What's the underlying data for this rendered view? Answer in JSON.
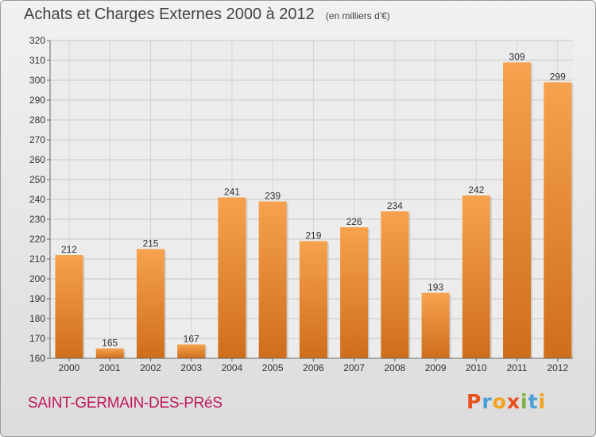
{
  "chart_data": {
    "type": "bar",
    "title": "Achats et Charges Externes 2000 à 2012",
    "subtitle": "(en milliers d'€)",
    "categories": [
      "2000",
      "2001",
      "2002",
      "2003",
      "2004",
      "2005",
      "2006",
      "2007",
      "2008",
      "2009",
      "2010",
      "2011",
      "2012"
    ],
    "values": [
      212,
      165,
      215,
      167,
      241,
      239,
      219,
      226,
      234,
      193,
      242,
      309,
      299
    ],
    "ylim": [
      160,
      320
    ],
    "yticks": [
      160,
      170,
      180,
      190,
      200,
      210,
      220,
      230,
      240,
      250,
      260,
      270,
      280,
      290,
      300,
      310,
      320
    ],
    "grid": true,
    "bar_color": "#f09a3e"
  },
  "footer": {
    "commune": "SAINT-GERMAIN-DES-PRéS",
    "logo_text": "Proxiti",
    "logo_colors": [
      "#e8501e",
      "#4a9fd8",
      "#f2a21c",
      "#e8501e",
      "#7cb342",
      "#4a9fd8",
      "#f2a21c"
    ]
  }
}
